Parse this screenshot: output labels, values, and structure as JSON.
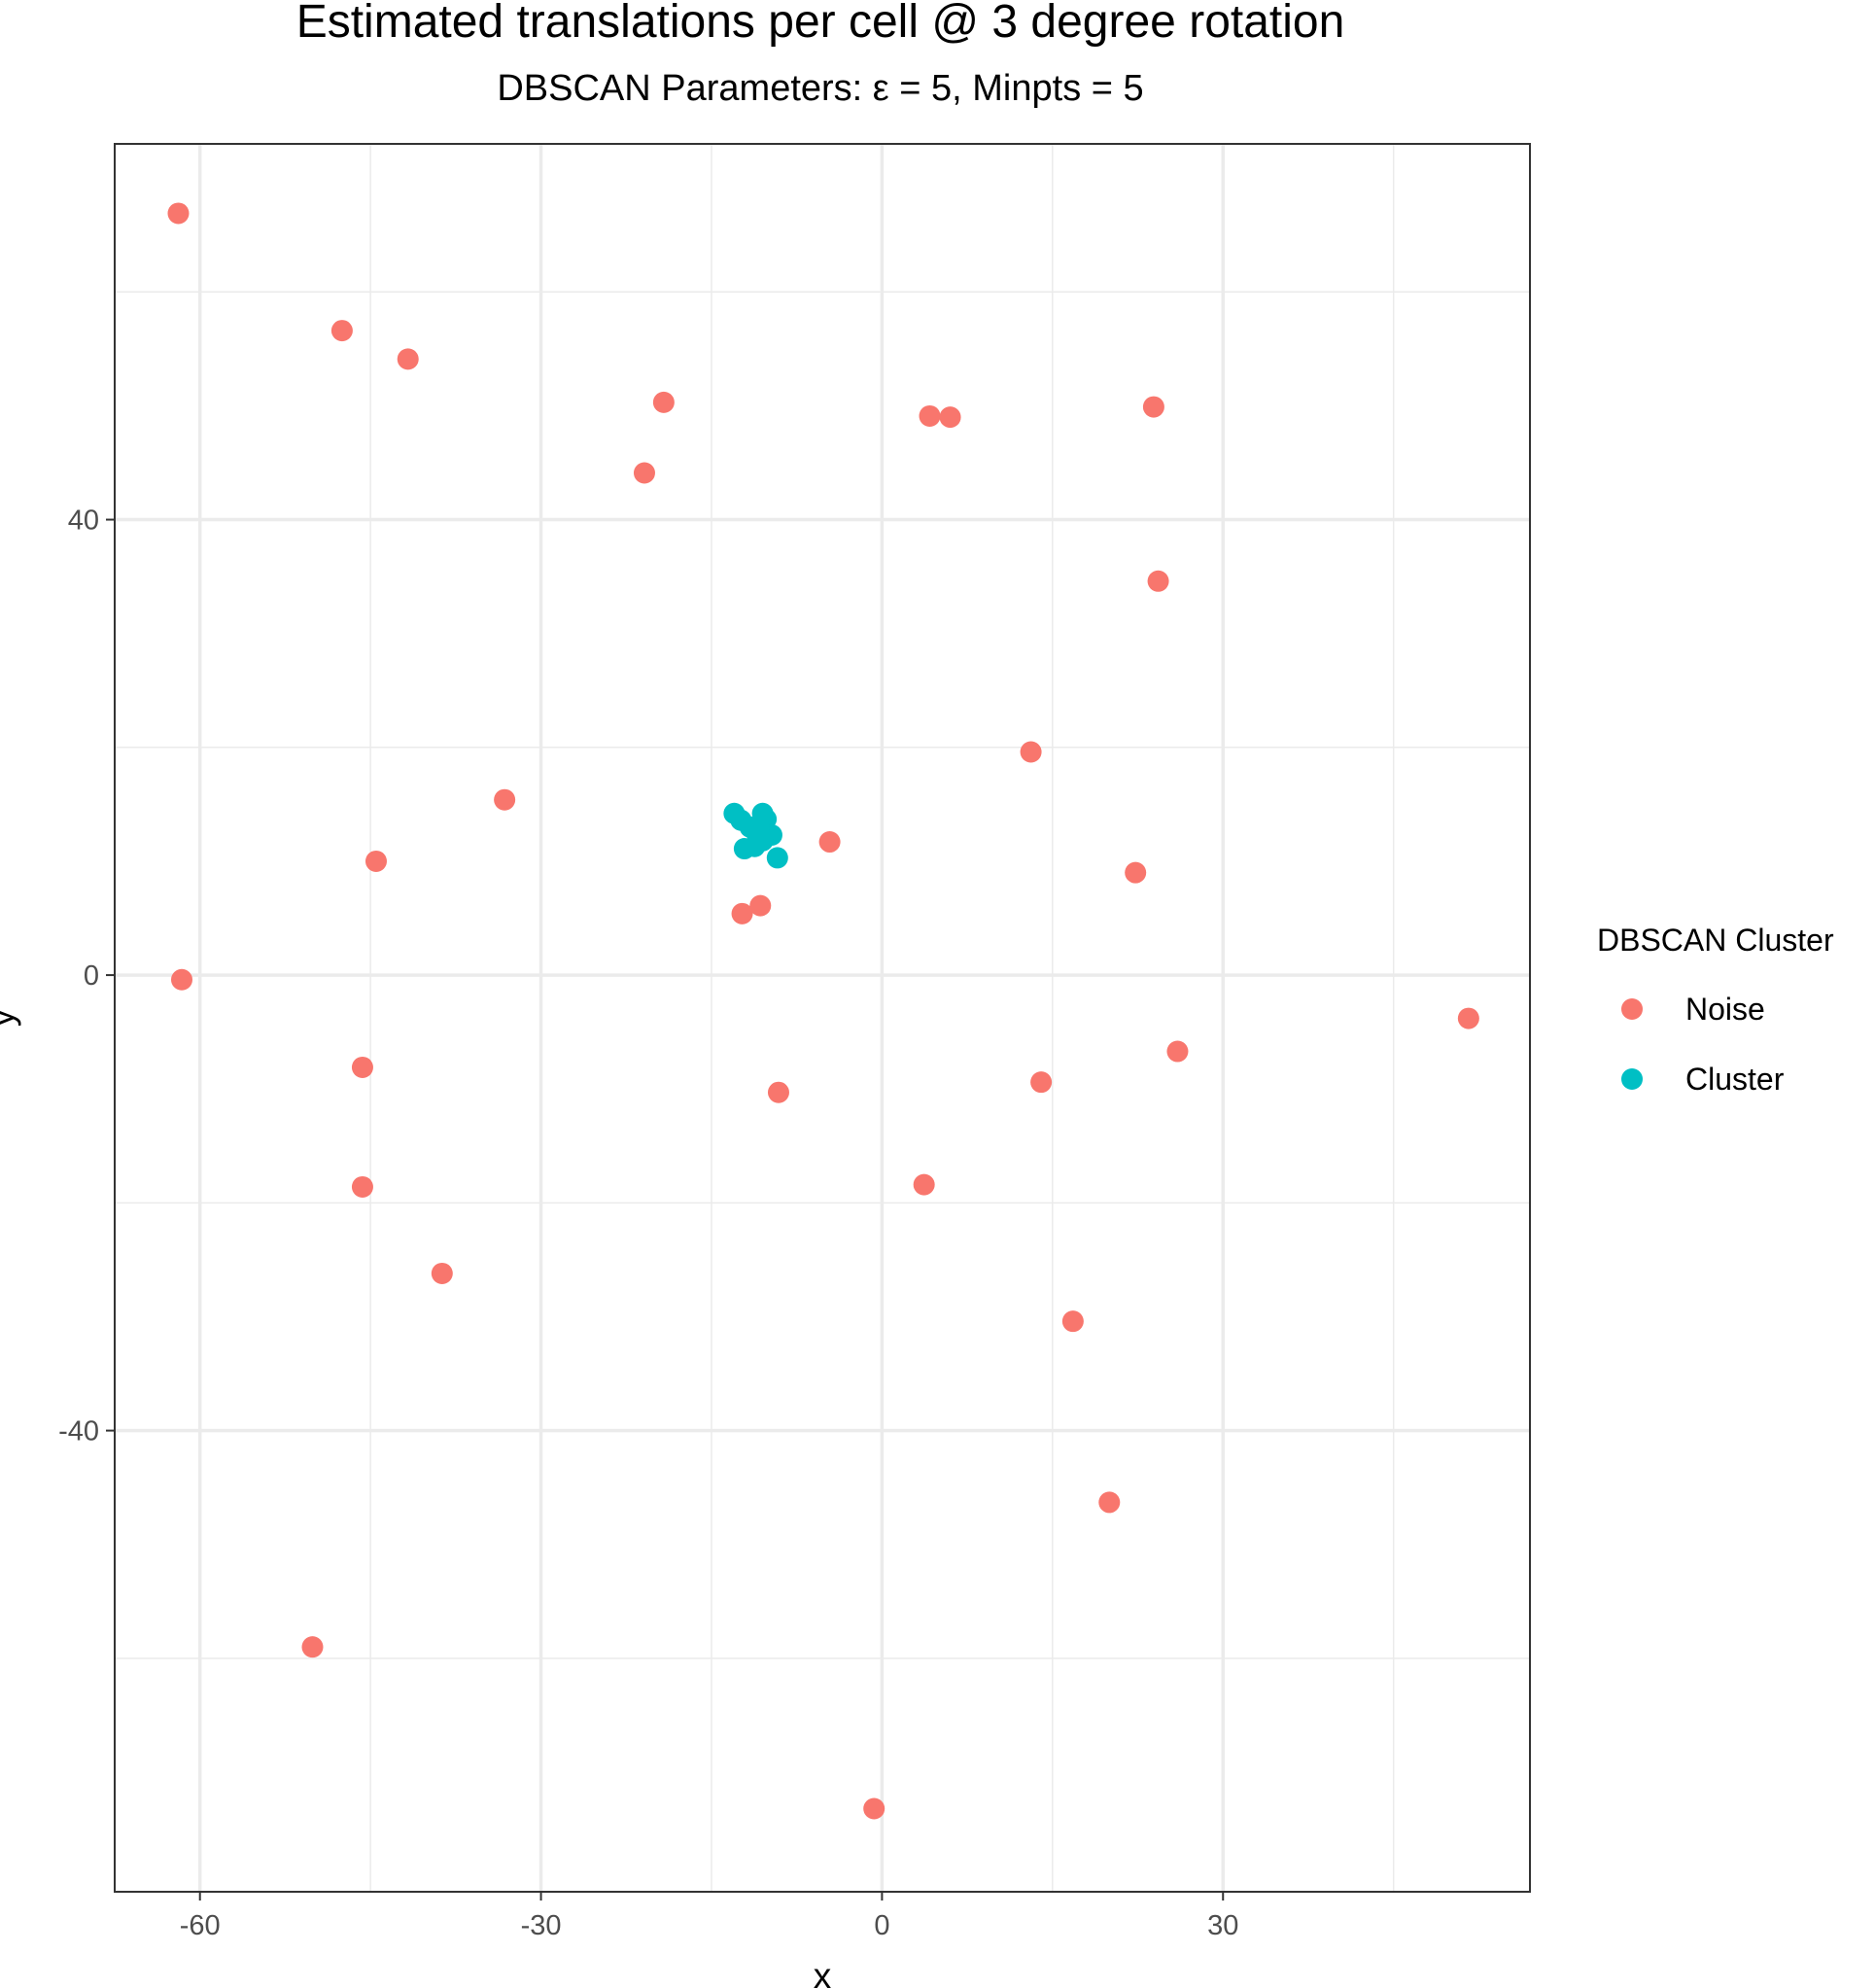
{
  "chart_data": {
    "type": "scatter",
    "title": "Estimated translations per cell @ 3 degree rotation",
    "subtitle": "DBSCAN Parameters:  ε  = 5, Minpts = 5",
    "xlabel": "x",
    "ylabel": "y",
    "xlim": [
      -67.5,
      57
    ],
    "ylim": [
      -80.5,
      73
    ],
    "x_ticks": [
      -60,
      -30,
      0,
      30
    ],
    "y_ticks": [
      -40,
      0,
      40
    ],
    "grid": true,
    "legend": {
      "title": "DBSCAN Cluster",
      "position": "right",
      "entries": [
        {
          "label": "Noise",
          "color": "#F8766D"
        },
        {
          "label": "Cluster",
          "color": "#00BFC4"
        }
      ]
    },
    "series": [
      {
        "name": "Noise",
        "color": "#F8766D",
        "points": [
          [
            -61.9,
            66.9
          ],
          [
            -47.5,
            56.6
          ],
          [
            -41.7,
            54.1
          ],
          [
            -19.2,
            50.3
          ],
          [
            -20.9,
            44.1
          ],
          [
            4.2,
            49.1
          ],
          [
            6.0,
            49.0
          ],
          [
            23.9,
            49.9
          ],
          [
            24.3,
            34.6
          ],
          [
            13.1,
            19.6
          ],
          [
            -33.2,
            15.4
          ],
          [
            -44.5,
            10.0
          ],
          [
            -4.6,
            11.7
          ],
          [
            22.3,
            9.0
          ],
          [
            -12.3,
            5.4
          ],
          [
            -10.7,
            6.1
          ],
          [
            -61.6,
            -0.4
          ],
          [
            -45.7,
            -8.1
          ],
          [
            -9.1,
            -10.3
          ],
          [
            14.0,
            -9.4
          ],
          [
            26.0,
            -6.7
          ],
          [
            51.6,
            -3.8
          ],
          [
            -45.7,
            -18.6
          ],
          [
            3.7,
            -18.4
          ],
          [
            -38.7,
            -26.2
          ],
          [
            16.8,
            -30.4
          ],
          [
            20.0,
            -46.3
          ],
          [
            -50.1,
            -59.0
          ],
          [
            -0.7,
            -73.2
          ]
        ]
      },
      {
        "name": "Cluster",
        "color": "#00BFC4",
        "points": [
          [
            -13.0,
            14.2
          ],
          [
            -12.4,
            13.6
          ],
          [
            -11.6,
            13.0
          ],
          [
            -10.5,
            14.2
          ],
          [
            -10.2,
            13.7
          ],
          [
            -11.0,
            12.4
          ],
          [
            -9.7,
            12.3
          ],
          [
            -10.5,
            11.8
          ],
          [
            -11.2,
            11.3
          ],
          [
            -12.1,
            11.1
          ],
          [
            -9.2,
            10.3
          ],
          [
            -10.8,
            12.9
          ]
        ]
      }
    ]
  }
}
